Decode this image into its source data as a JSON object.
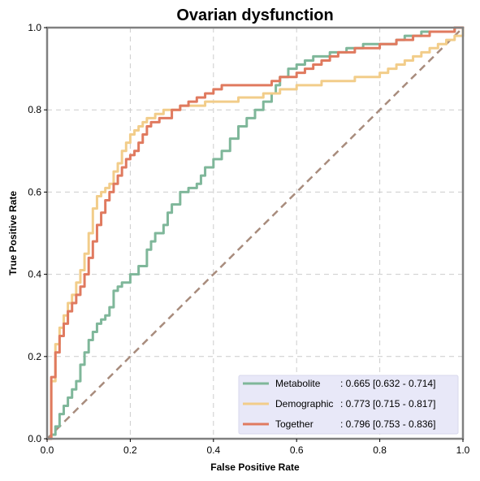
{
  "chart_data": {
    "type": "line",
    "title": "Ovarian dysfunction",
    "xlabel": "False Positive Rate",
    "ylabel": "True Positive Rate",
    "xlim": [
      0,
      1
    ],
    "ylim": [
      0,
      1
    ],
    "x_ticks": [
      "0.0",
      "0.2",
      "0.4",
      "0.6",
      "0.8",
      "1.0"
    ],
    "y_ticks": [
      "0.0",
      "0.2",
      "0.4",
      "0.6",
      "0.8",
      "1.0"
    ],
    "grid": true,
    "legend_position": "lower-right",
    "diagonal": {
      "x": [
        0,
        1
      ],
      "y": [
        0,
        1
      ],
      "color": "#a88c7d",
      "style": "dashed"
    },
    "series": [
      {
        "name": "Metabolite",
        "auc_label": ": 0.665 [0.632 - 0.714]",
        "color": "#7fb79a",
        "x": [
          0,
          0.01,
          0.02,
          0.03,
          0.04,
          0.05,
          0.06,
          0.07,
          0.08,
          0.09,
          0.1,
          0.11,
          0.12,
          0.13,
          0.14,
          0.15,
          0.16,
          0.17,
          0.18,
          0.2,
          0.22,
          0.24,
          0.25,
          0.26,
          0.28,
          0.29,
          0.3,
          0.32,
          0.34,
          0.36,
          0.37,
          0.38,
          0.4,
          0.42,
          0.44,
          0.46,
          0.48,
          0.5,
          0.52,
          0.54,
          0.55,
          0.56,
          0.58,
          0.6,
          0.62,
          0.64,
          0.66,
          0.68,
          0.7,
          0.72,
          0.74,
          0.76,
          0.78,
          0.8,
          0.82,
          0.84,
          0.86,
          0.88,
          0.9,
          0.92,
          0.94,
          0.96,
          0.98,
          1.0
        ],
        "y": [
          0,
          0.01,
          0.03,
          0.06,
          0.08,
          0.1,
          0.12,
          0.14,
          0.18,
          0.21,
          0.24,
          0.26,
          0.28,
          0.29,
          0.3,
          0.32,
          0.36,
          0.37,
          0.38,
          0.4,
          0.42,
          0.46,
          0.48,
          0.5,
          0.52,
          0.55,
          0.57,
          0.6,
          0.61,
          0.62,
          0.64,
          0.66,
          0.68,
          0.7,
          0.73,
          0.76,
          0.78,
          0.8,
          0.82,
          0.84,
          0.86,
          0.88,
          0.9,
          0.91,
          0.92,
          0.93,
          0.93,
          0.94,
          0.94,
          0.95,
          0.95,
          0.96,
          0.96,
          0.96,
          0.96,
          0.97,
          0.98,
          0.98,
          0.99,
          0.99,
          0.99,
          0.99,
          1.0,
          1.0
        ]
      },
      {
        "name": "Demographic",
        "auc_label": ": 0.773 [0.715 - 0.817]",
        "color": "#f2cd8a",
        "x": [
          0,
          0.01,
          0.02,
          0.03,
          0.04,
          0.05,
          0.06,
          0.07,
          0.08,
          0.09,
          0.1,
          0.11,
          0.12,
          0.13,
          0.14,
          0.15,
          0.16,
          0.17,
          0.18,
          0.19,
          0.2,
          0.21,
          0.22,
          0.23,
          0.24,
          0.25,
          0.26,
          0.27,
          0.28,
          0.3,
          0.32,
          0.34,
          0.36,
          0.38,
          0.4,
          0.42,
          0.44,
          0.46,
          0.48,
          0.5,
          0.52,
          0.54,
          0.56,
          0.58,
          0.6,
          0.62,
          0.64,
          0.66,
          0.68,
          0.7,
          0.72,
          0.74,
          0.76,
          0.78,
          0.8,
          0.82,
          0.84,
          0.86,
          0.88,
          0.9,
          0.92,
          0.94,
          0.96,
          0.98,
          1.0
        ],
        "y": [
          0,
          0.14,
          0.23,
          0.27,
          0.3,
          0.33,
          0.35,
          0.38,
          0.41,
          0.45,
          0.5,
          0.56,
          0.59,
          0.6,
          0.61,
          0.62,
          0.65,
          0.67,
          0.7,
          0.72,
          0.74,
          0.75,
          0.76,
          0.77,
          0.78,
          0.78,
          0.79,
          0.79,
          0.8,
          0.8,
          0.81,
          0.81,
          0.81,
          0.82,
          0.82,
          0.82,
          0.82,
          0.83,
          0.83,
          0.83,
          0.84,
          0.84,
          0.85,
          0.85,
          0.86,
          0.86,
          0.86,
          0.87,
          0.87,
          0.87,
          0.87,
          0.88,
          0.88,
          0.88,
          0.89,
          0.9,
          0.91,
          0.92,
          0.93,
          0.94,
          0.95,
          0.96,
          0.97,
          0.98,
          1.0
        ]
      },
      {
        "name": "Together",
        "auc_label": ": 0.796 [0.753 - 0.836]",
        "color": "#e07a5f",
        "x": [
          0,
          0.01,
          0.02,
          0.03,
          0.04,
          0.05,
          0.06,
          0.07,
          0.08,
          0.09,
          0.1,
          0.11,
          0.12,
          0.13,
          0.14,
          0.15,
          0.16,
          0.17,
          0.18,
          0.19,
          0.2,
          0.21,
          0.22,
          0.23,
          0.24,
          0.25,
          0.26,
          0.27,
          0.28,
          0.3,
          0.32,
          0.34,
          0.36,
          0.38,
          0.4,
          0.42,
          0.44,
          0.46,
          0.48,
          0.5,
          0.52,
          0.54,
          0.56,
          0.58,
          0.6,
          0.62,
          0.64,
          0.66,
          0.68,
          0.7,
          0.72,
          0.74,
          0.76,
          0.78,
          0.8,
          0.82,
          0.84,
          0.86,
          0.88,
          0.9,
          0.92,
          0.94,
          0.96,
          0.98,
          1.0
        ],
        "y": [
          0,
          0.15,
          0.21,
          0.25,
          0.28,
          0.31,
          0.33,
          0.35,
          0.37,
          0.4,
          0.44,
          0.48,
          0.52,
          0.55,
          0.58,
          0.6,
          0.62,
          0.64,
          0.66,
          0.68,
          0.69,
          0.7,
          0.72,
          0.74,
          0.76,
          0.77,
          0.77,
          0.78,
          0.78,
          0.8,
          0.81,
          0.82,
          0.83,
          0.84,
          0.85,
          0.86,
          0.86,
          0.86,
          0.86,
          0.86,
          0.86,
          0.87,
          0.88,
          0.88,
          0.89,
          0.9,
          0.91,
          0.92,
          0.93,
          0.94,
          0.94,
          0.95,
          0.95,
          0.95,
          0.96,
          0.96,
          0.97,
          0.97,
          0.98,
          0.98,
          0.99,
          0.99,
          0.99,
          1.0,
          1.0
        ]
      }
    ]
  },
  "colors": {
    "grid": "#cccccc",
    "frame": "#808080",
    "legend_bg": "#e8e8f8"
  }
}
